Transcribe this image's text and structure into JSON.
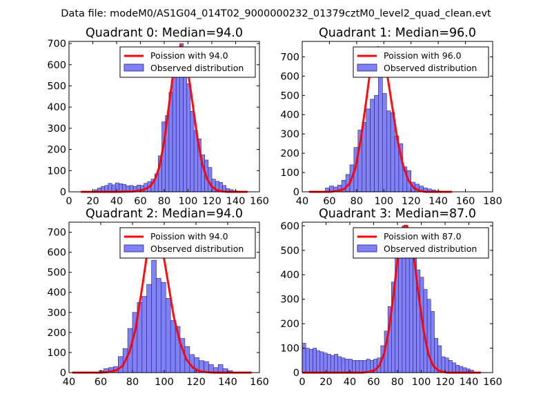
{
  "figure": {
    "suptitle": "Data file: modeM0/AS1G04_014T02_9000000232_01379cztM0_level2_quad_clean.evt"
  },
  "colors": {
    "bar_fill": "#8080f8",
    "bar_edge": "#24246e",
    "poisson_line": "#ff0000",
    "poisson_line_light": "#ff8c8c",
    "axis": "#000000"
  },
  "chart_data": [
    {
      "type": "bar",
      "title": "Quadrant 0: Median=94.0",
      "median": 94.0,
      "xlim": [
        0,
        160
      ],
      "ylim": [
        0,
        710
      ],
      "xticks": [
        0,
        20,
        40,
        60,
        80,
        100,
        120,
        140,
        160
      ],
      "yticks": [
        0,
        100,
        200,
        300,
        400,
        500,
        600,
        700
      ],
      "legend_loc": "upper right",
      "legend": [
        "Poission with 94.0",
        "Observed distribution"
      ],
      "bin_width": 3,
      "bins_start": [
        21,
        24,
        27,
        30,
        33,
        36,
        39,
        42,
        45,
        48,
        51,
        54,
        57,
        60,
        63,
        66,
        69,
        72,
        75,
        78,
        81,
        84,
        87,
        90,
        93,
        96,
        99,
        102,
        105,
        108,
        111,
        114,
        117,
        120,
        123,
        126,
        129,
        132,
        135,
        138,
        141,
        144
      ],
      "counts": [
        10,
        18,
        25,
        30,
        40,
        33,
        42,
        38,
        35,
        28,
        30,
        25,
        32,
        30,
        40,
        48,
        60,
        85,
        170,
        330,
        360,
        470,
        590,
        650,
        700,
        610,
        510,
        380,
        290,
        250,
        175,
        150,
        115,
        60,
        50,
        45,
        30,
        15,
        10,
        5,
        3,
        2
      ],
      "poisson": {
        "label": "Poission with 94.0",
        "x": [
          10,
          40,
          55,
          63,
          68,
          72,
          76,
          80,
          84,
          88,
          91,
          94,
          97,
          100,
          104,
          108,
          112,
          116,
          120,
          124,
          128,
          133,
          138,
          150
        ],
        "y": [
          0,
          0,
          2,
          10,
          25,
          55,
          120,
          240,
          410,
          580,
          670,
          690,
          660,
          570,
          410,
          250,
          130,
          60,
          25,
          8,
          3,
          0,
          0,
          0
        ]
      }
    },
    {
      "type": "bar",
      "title": "Quadrant 1: Median=96.0",
      "median": 96.0,
      "xlim": [
        40,
        180
      ],
      "ylim": [
        0,
        780
      ],
      "xticks": [
        40,
        60,
        80,
        100,
        120,
        140,
        160,
        180
      ],
      "yticks": [
        0,
        100,
        200,
        300,
        400,
        500,
        600,
        700
      ],
      "legend_loc": "upper right",
      "legend": [
        "Poission with 96.0",
        "Observed distribution"
      ],
      "bin_width": 3,
      "bins_start": [
        57,
        60,
        63,
        66,
        69,
        72,
        75,
        78,
        81,
        84,
        87,
        90,
        93,
        96,
        99,
        102,
        105,
        108,
        111,
        114,
        117,
        120,
        123,
        126,
        129,
        132,
        135,
        138,
        141
      ],
      "counts": [
        20,
        30,
        25,
        35,
        60,
        90,
        140,
        230,
        320,
        360,
        430,
        480,
        500,
        720,
        510,
        420,
        410,
        290,
        250,
        130,
        110,
        50,
        40,
        30,
        20,
        15,
        10,
        5,
        3
      ],
      "poisson": {
        "label": "Poission with 96.0",
        "x": [
          45,
          60,
          66,
          71,
          75,
          79,
          83,
          87,
          90,
          93,
          96,
          99,
          102,
          106,
          110,
          114,
          118,
          122,
          126,
          131,
          136,
          150
        ],
        "y": [
          0,
          0,
          5,
          15,
          45,
          120,
          270,
          470,
          630,
          720,
          750,
          720,
          630,
          450,
          270,
          140,
          60,
          20,
          6,
          0,
          0,
          0
        ]
      }
    },
    {
      "type": "bar",
      "title": "Quadrant 2: Median=94.0",
      "median": 94.0,
      "xlim": [
        40,
        160
      ],
      "ylim": [
        0,
        750
      ],
      "xticks": [
        40,
        60,
        80,
        100,
        120,
        140,
        160
      ],
      "yticks": [
        0,
        100,
        200,
        300,
        400,
        500,
        600,
        700
      ],
      "legend_loc": "upper right",
      "legend": [
        "Poission with 94.0",
        "Observed distribution"
      ],
      "bin_width": 3,
      "bins_start": [
        59,
        62,
        65,
        68,
        71,
        74,
        77,
        80,
        83,
        86,
        89,
        92,
        95,
        98,
        101,
        104,
        107,
        110,
        113,
        116,
        119,
        122,
        125,
        128,
        131,
        134,
        137,
        140
      ],
      "counts": [
        10,
        20,
        25,
        30,
        80,
        120,
        220,
        300,
        350,
        380,
        440,
        560,
        470,
        450,
        370,
        260,
        230,
        170,
        130,
        90,
        75,
        60,
        55,
        40,
        25,
        40,
        20,
        10
      ],
      "poisson": {
        "label": "Poission with 94.0",
        "x": [
          42,
          60,
          65,
          70,
          74,
          78,
          82,
          86,
          89,
          92,
          94,
          96,
          99,
          102,
          106,
          110,
          114,
          118,
          122,
          126,
          131,
          136,
          155
        ],
        "y": [
          0,
          0,
          3,
          12,
          35,
          100,
          220,
          420,
          580,
          700,
          710,
          700,
          610,
          470,
          280,
          150,
          65,
          25,
          8,
          3,
          0,
          0,
          0
        ]
      }
    },
    {
      "type": "bar",
      "title": "Quadrant 3: Median=87.0",
      "median": 87.0,
      "xlim": [
        0,
        160
      ],
      "ylim": [
        0,
        615
      ],
      "xticks": [
        0,
        20,
        40,
        60,
        80,
        100,
        120,
        140,
        160
      ],
      "yticks": [
        0,
        100,
        200,
        300,
        400,
        500,
        600
      ],
      "legend_loc": "upper right",
      "legend": [
        "Poission with 87.0",
        "Observed distribution"
      ],
      "bin_width": 3,
      "bins_start": [
        0,
        3,
        6,
        9,
        12,
        15,
        18,
        21,
        24,
        27,
        30,
        33,
        36,
        39,
        42,
        45,
        48,
        51,
        54,
        57,
        60,
        63,
        66,
        69,
        72,
        75,
        78,
        81,
        84,
        87,
        90,
        93,
        96,
        99,
        102,
        105,
        108,
        111,
        114,
        117,
        120,
        123,
        126,
        129,
        132,
        135,
        138,
        141
      ],
      "counts": [
        120,
        100,
        95,
        100,
        90,
        85,
        80,
        75,
        70,
        75,
        65,
        60,
        55,
        55,
        50,
        50,
        50,
        50,
        55,
        50,
        55,
        60,
        110,
        170,
        270,
        370,
        480,
        560,
        600,
        590,
        540,
        480,
        420,
        390,
        340,
        300,
        250,
        140,
        110,
        65,
        60,
        50,
        40,
        30,
        25,
        20,
        15,
        10
      ],
      "poisson": {
        "label": "Poission with 87.0",
        "x": [
          0,
          50,
          56,
          61,
          65,
          69,
          73,
          77,
          80,
          83,
          86,
          88,
          91,
          94,
          98,
          102,
          106,
          110,
          114,
          118,
          122,
          127,
          132,
          150
        ],
        "y": [
          0,
          0,
          3,
          10,
          30,
          80,
          180,
          330,
          460,
          560,
          600,
          600,
          560,
          470,
          310,
          170,
          75,
          28,
          10,
          3,
          0,
          0,
          0,
          0
        ]
      }
    }
  ]
}
